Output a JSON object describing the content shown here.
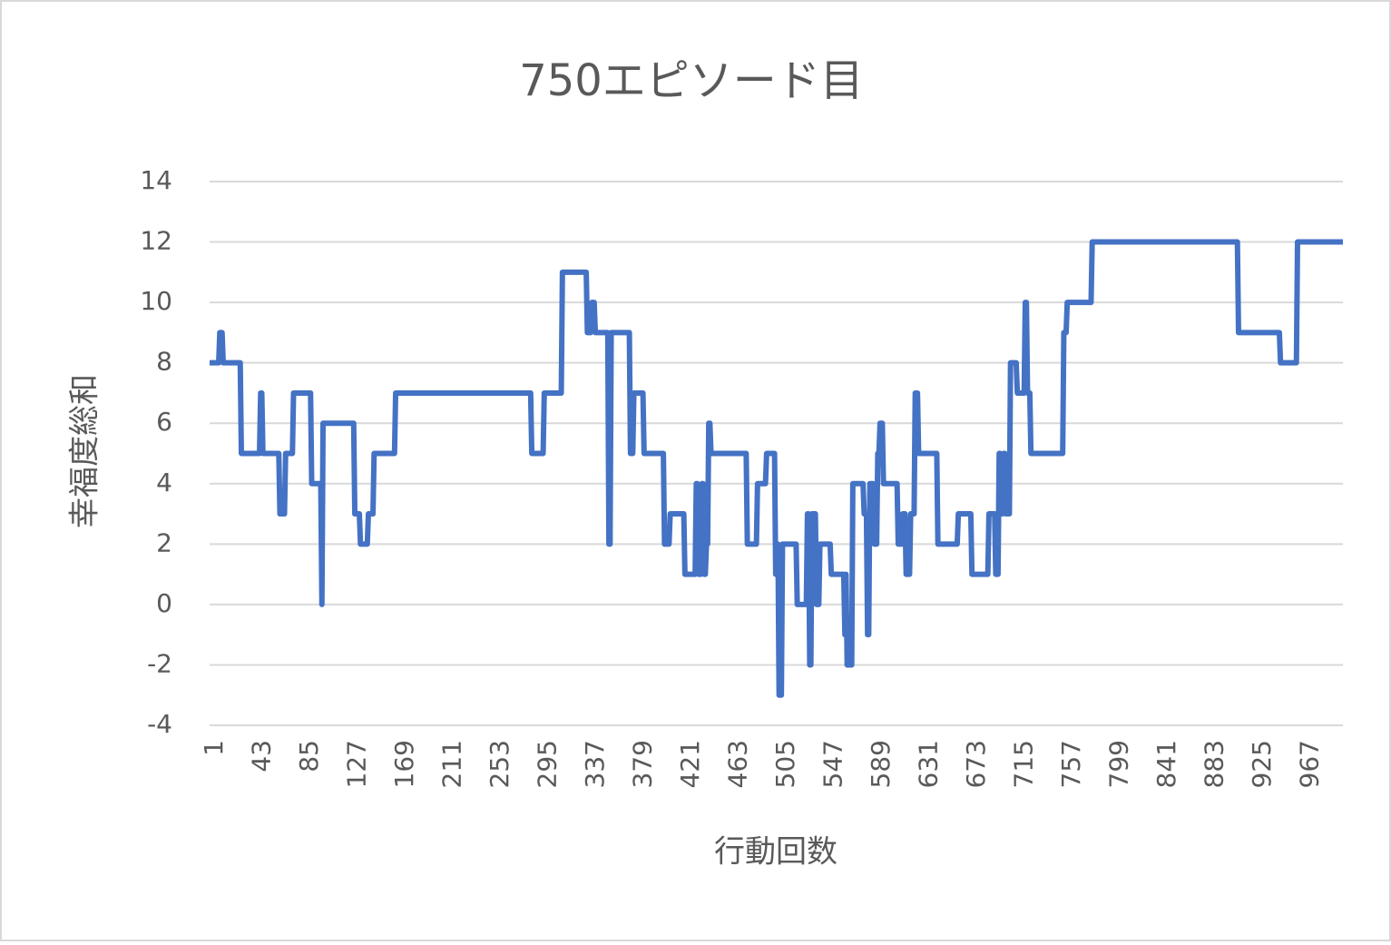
{
  "chart_data": {
    "type": "line",
    "title": "750エピソード目",
    "x_label": "行動回数",
    "y_label": "幸福度総和",
    "xlim": [
      1,
      1000
    ],
    "xticks": [
      1,
      43,
      85,
      127,
      169,
      211,
      253,
      295,
      337,
      379,
      421,
      463,
      505,
      547,
      589,
      631,
      673,
      715,
      757,
      799,
      841,
      883,
      925,
      967
    ],
    "ylim": [
      -4,
      14
    ],
    "yticks": [
      -4,
      -2,
      0,
      2,
      4,
      6,
      8,
      10,
      12,
      14
    ],
    "grid": true,
    "series": [
      {
        "color": "#4472c4",
        "x": [
          1,
          9,
          10,
          12,
          13,
          28,
          29,
          45,
          46,
          47,
          48,
          62,
          63,
          67,
          68,
          74,
          75,
          90,
          91,
          99,
          100,
          101,
          128,
          129,
          133,
          134,
          140,
          141,
          145,
          146,
          164,
          165,
          284,
          285,
          295,
          296,
          311,
          312,
          333,
          334,
          337,
          338,
          340,
          341,
          352,
          353,
          354,
          355,
          371,
          372,
          374,
          375,
          383,
          384,
          401,
          402,
          406,
          407,
          419,
          420,
          429,
          430,
          431,
          432,
          434,
          435,
          436,
          437,
          438,
          439,
          440,
          441,
          442,
          443,
          474,
          475,
          483,
          484,
          491,
          492,
          499,
          500,
          501,
          502,
          503,
          505,
          506,
          518,
          519,
          527,
          528,
          529,
          530,
          531,
          532,
          535,
          536,
          538,
          539,
          548,
          549,
          560,
          561,
          562,
          563,
          567,
          568,
          577,
          578,
          580,
          581,
          582,
          583,
          586,
          587,
          589,
          590,
          591,
          592,
          594,
          595,
          607,
          608,
          611,
          612,
          614,
          615,
          618,
          619,
          622,
          623,
          625,
          626,
          642,
          643,
          660,
          661,
          672,
          673,
          687,
          688,
          693,
          694,
          696,
          697,
          698,
          699,
          700,
          701,
          702,
          703,
          706,
          707,
          712,
          713,
          719,
          720,
          721,
          722,
          724,
          725,
          753,
          754,
          756,
          757,
          778,
          779,
          907,
          908,
          944,
          945,
          959,
          960,
          1000
        ],
        "values": [
          8,
          8,
          9,
          9,
          8,
          8,
          5,
          5,
          7,
          7,
          5,
          5,
          3,
          3,
          5,
          5,
          7,
          7,
          4,
          4,
          0,
          6,
          6,
          3,
          3,
          2,
          2,
          3,
          3,
          5,
          5,
          7,
          7,
          5,
          5,
          7,
          7,
          11,
          11,
          9,
          9,
          10,
          10,
          9,
          9,
          2,
          2,
          9,
          9,
          5,
          5,
          7,
          7,
          5,
          5,
          2,
          2,
          3,
          3,
          1,
          1,
          4,
          4,
          1,
          1,
          4,
          4,
          1,
          1,
          2,
          2,
          6,
          6,
          5,
          5,
          2,
          2,
          4,
          4,
          5,
          5,
          1,
          2,
          2,
          -3,
          -3,
          2,
          2,
          0,
          0,
          3,
          3,
          -2,
          -2,
          3,
          3,
          0,
          0,
          2,
          2,
          1,
          1,
          -1,
          1,
          -2,
          -2,
          4,
          4,
          3,
          3,
          -1,
          -1,
          4,
          4,
          2,
          2,
          5,
          5,
          6,
          6,
          4,
          4,
          2,
          2,
          3,
          3,
          1,
          1,
          3,
          3,
          7,
          7,
          5,
          5,
          2,
          2,
          3,
          3,
          1,
          1,
          3,
          3,
          1,
          1,
          5,
          5,
          3,
          3,
          5,
          5,
          3,
          3,
          8,
          8,
          7,
          7,
          10,
          10,
          7,
          7,
          5,
          5,
          9,
          9,
          10,
          10,
          12,
          12,
          9,
          9,
          8,
          8,
          12,
          12
        ]
      }
    ]
  }
}
